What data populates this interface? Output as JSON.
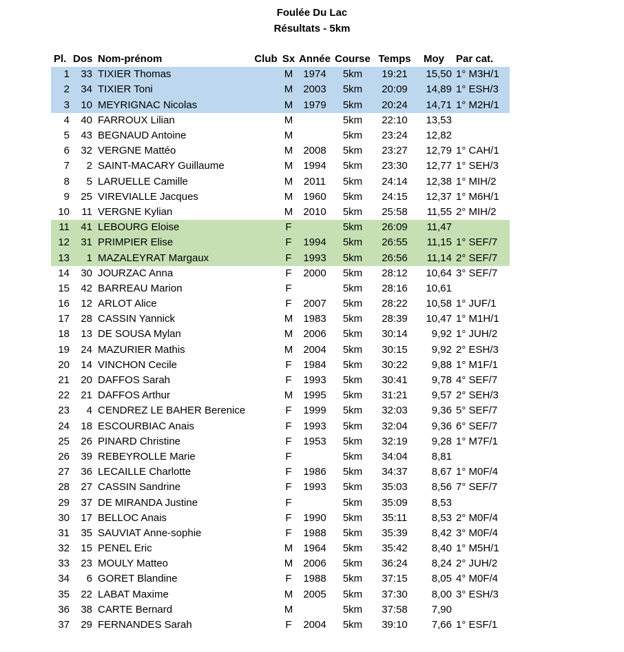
{
  "title": "Foulée Du Lac",
  "subtitle": "Résultats - 5km",
  "colors": {
    "highlight_blue": "#BDD7EE",
    "highlight_green": "#C6E0B4",
    "text": "#000000",
    "background": "#FFFFFF"
  },
  "table": {
    "columns": [
      {
        "key": "pl",
        "label": "Pl."
      },
      {
        "key": "dos",
        "label": "Dos"
      },
      {
        "key": "nom",
        "label": "Nom-prénom"
      },
      {
        "key": "club",
        "label": "Club"
      },
      {
        "key": "sx",
        "label": "Sx"
      },
      {
        "key": "annee",
        "label": "Année"
      },
      {
        "key": "course",
        "label": "Course"
      },
      {
        "key": "temps",
        "label": "Temps"
      },
      {
        "key": "moy",
        "label": "Moy"
      },
      {
        "key": "cat",
        "label": "Par cat."
      }
    ],
    "rows": [
      {
        "pl": "1",
        "dos": "33",
        "nom": "TIXIER Thomas",
        "club": "",
        "sx": "M",
        "annee": "1974",
        "course": "5km",
        "temps": "19:21",
        "moy": "15,50",
        "cat": "1° M3H/1",
        "hl": "blue"
      },
      {
        "pl": "2",
        "dos": "34",
        "nom": "TIXIER Toni",
        "club": "",
        "sx": "M",
        "annee": "2003",
        "course": "5km",
        "temps": "20:09",
        "moy": "14,89",
        "cat": "1° ESH/3",
        "hl": "blue"
      },
      {
        "pl": "3",
        "dos": "10",
        "nom": "MEYRIGNAC Nicolas",
        "club": "",
        "sx": "M",
        "annee": "1979",
        "course": "5km",
        "temps": "20:24",
        "moy": "14,71",
        "cat": "1° M2H/1",
        "hl": "blue"
      },
      {
        "pl": "4",
        "dos": "40",
        "nom": "FARROUX Lilian",
        "club": "",
        "sx": "M",
        "annee": "",
        "course": "5km",
        "temps": "22:10",
        "moy": "13,53",
        "cat": ""
      },
      {
        "pl": "5",
        "dos": "43",
        "nom": "BEGNAUD Antoine",
        "club": "",
        "sx": "M",
        "annee": "",
        "course": "5km",
        "temps": "23:24",
        "moy": "12,82",
        "cat": ""
      },
      {
        "pl": "6",
        "dos": "32",
        "nom": "VERGNE Mattéo",
        "club": "",
        "sx": "M",
        "annee": "2008",
        "course": "5km",
        "temps": "23:27",
        "moy": "12,79",
        "cat": "1° CAH/1"
      },
      {
        "pl": "7",
        "dos": "2",
        "nom": "SAINT-MACARY Guillaume",
        "club": "",
        "sx": "M",
        "annee": "1994",
        "course": "5km",
        "temps": "23:30",
        "moy": "12,77",
        "cat": "1° SEH/3"
      },
      {
        "pl": "8",
        "dos": "5",
        "nom": "LARUELLE Camille",
        "club": "",
        "sx": "M",
        "annee": "2011",
        "course": "5km",
        "temps": "24:14",
        "moy": "12,38",
        "cat": "1° MIH/2"
      },
      {
        "pl": "9",
        "dos": "25",
        "nom": "VIREVIALLE Jacques",
        "club": "",
        "sx": "M",
        "annee": "1960",
        "course": "5km",
        "temps": "24:15",
        "moy": "12,37",
        "cat": "1° M6H/1"
      },
      {
        "pl": "10",
        "dos": "11",
        "nom": "VERGNE Kylian",
        "club": "",
        "sx": "M",
        "annee": "2010",
        "course": "5km",
        "temps": "25:58",
        "moy": "11,55",
        "cat": "2° MIH/2"
      },
      {
        "pl": "11",
        "dos": "41",
        "nom": "LEBOURG Eloise",
        "club": "",
        "sx": "F",
        "annee": "",
        "course": "5km",
        "temps": "26:09",
        "moy": "11,47",
        "cat": "",
        "hl": "green"
      },
      {
        "pl": "12",
        "dos": "31",
        "nom": "PRIMPIER Elise",
        "club": "",
        "sx": "F",
        "annee": "1994",
        "course": "5km",
        "temps": "26:55",
        "moy": "11,15",
        "cat": "1° SEF/7",
        "hl": "green"
      },
      {
        "pl": "13",
        "dos": "1",
        "nom": "MAZALEYRAT Margaux",
        "club": "",
        "sx": "F",
        "annee": "1993",
        "course": "5km",
        "temps": "26:56",
        "moy": "11,14",
        "cat": "2° SEF/7",
        "hl": "green"
      },
      {
        "pl": "14",
        "dos": "30",
        "nom": "JOURZAC Anna",
        "club": "",
        "sx": "F",
        "annee": "2000",
        "course": "5km",
        "temps": "28:12",
        "moy": "10,64",
        "cat": "3° SEF/7"
      },
      {
        "pl": "15",
        "dos": "42",
        "nom": "BARREAU Marion",
        "club": "",
        "sx": "F",
        "annee": "",
        "course": "5km",
        "temps": "28:16",
        "moy": "10,61",
        "cat": ""
      },
      {
        "pl": "16",
        "dos": "12",
        "nom": "ARLOT Alice",
        "club": "",
        "sx": "F",
        "annee": "2007",
        "course": "5km",
        "temps": "28:22",
        "moy": "10,58",
        "cat": "1° JUF/1"
      },
      {
        "pl": "17",
        "dos": "28",
        "nom": "CASSIN Yannick",
        "club": "",
        "sx": "M",
        "annee": "1983",
        "course": "5km",
        "temps": "28:39",
        "moy": "10,47",
        "cat": "1° M1H/1"
      },
      {
        "pl": "18",
        "dos": "13",
        "nom": "DE SOUSA Mylan",
        "club": "",
        "sx": "M",
        "annee": "2006",
        "course": "5km",
        "temps": "30:14",
        "moy": "9,92",
        "cat": "1° JUH/2"
      },
      {
        "pl": "19",
        "dos": "24",
        "nom": "MAZURIER Mathis",
        "club": "",
        "sx": "M",
        "annee": "2004",
        "course": "5km",
        "temps": "30:15",
        "moy": "9,92",
        "cat": "2° ESH/3"
      },
      {
        "pl": "20",
        "dos": "14",
        "nom": "VINCHON Cecile",
        "club": "",
        "sx": "F",
        "annee": "1984",
        "course": "5km",
        "temps": "30:22",
        "moy": "9,88",
        "cat": "1° M1F/1"
      },
      {
        "pl": "21",
        "dos": "20",
        "nom": "DAFFOS Sarah",
        "club": "",
        "sx": "F",
        "annee": "1993",
        "course": "5km",
        "temps": "30:41",
        "moy": "9,78",
        "cat": "4° SEF/7"
      },
      {
        "pl": "22",
        "dos": "21",
        "nom": "DAFFOS Arthur",
        "club": "",
        "sx": "M",
        "annee": "1995",
        "course": "5km",
        "temps": "31:21",
        "moy": "9,57",
        "cat": "2° SEH/3"
      },
      {
        "pl": "23",
        "dos": "4",
        "nom": "CENDREZ LE BAHER Berenice",
        "club": "",
        "sx": "F",
        "annee": "1999",
        "course": "5km",
        "temps": "32:03",
        "moy": "9,36",
        "cat": "5° SEF/7"
      },
      {
        "pl": "24",
        "dos": "18",
        "nom": "ESCOURBIAC Anais",
        "club": "",
        "sx": "F",
        "annee": "1993",
        "course": "5km",
        "temps": "32:04",
        "moy": "9,36",
        "cat": "6° SEF/7"
      },
      {
        "pl": "25",
        "dos": "26",
        "nom": "PINARD Christine",
        "club": "",
        "sx": "F",
        "annee": "1953",
        "course": "5km",
        "temps": "32:19",
        "moy": "9,28",
        "cat": "1° M7F/1"
      },
      {
        "pl": "26",
        "dos": "39",
        "nom": "REBEYROLLE Marie",
        "club": "",
        "sx": "F",
        "annee": "",
        "course": "5km",
        "temps": "34:04",
        "moy": "8,81",
        "cat": ""
      },
      {
        "pl": "27",
        "dos": "36",
        "nom": "LECAILLE Charlotte",
        "club": "",
        "sx": "F",
        "annee": "1986",
        "course": "5km",
        "temps": "34:37",
        "moy": "8,67",
        "cat": "1° M0F/4"
      },
      {
        "pl": "28",
        "dos": "27",
        "nom": "CASSIN Sandrine",
        "club": "",
        "sx": "F",
        "annee": "1993",
        "course": "5km",
        "temps": "35:03",
        "moy": "8,56",
        "cat": "7° SEF/7"
      },
      {
        "pl": "29",
        "dos": "37",
        "nom": "DE MIRANDA Justine",
        "club": "",
        "sx": "F",
        "annee": "",
        "course": "5km",
        "temps": "35:09",
        "moy": "8,53",
        "cat": ""
      },
      {
        "pl": "30",
        "dos": "17",
        "nom": "BELLOC Anais",
        "club": "",
        "sx": "F",
        "annee": "1990",
        "course": "5km",
        "temps": "35:11",
        "moy": "8,53",
        "cat": "2° M0F/4"
      },
      {
        "pl": "31",
        "dos": "35",
        "nom": "SAUVIAT Anne-sophie",
        "club": "",
        "sx": "F",
        "annee": "1988",
        "course": "5km",
        "temps": "35:39",
        "moy": "8,42",
        "cat": "3° M0F/4"
      },
      {
        "pl": "32",
        "dos": "15",
        "nom": "PENEL Eric",
        "club": "",
        "sx": "M",
        "annee": "1964",
        "course": "5km",
        "temps": "35:42",
        "moy": "8,40",
        "cat": "1° M5H/1"
      },
      {
        "pl": "33",
        "dos": "23",
        "nom": "MOULY Matteo",
        "club": "",
        "sx": "M",
        "annee": "2006",
        "course": "5km",
        "temps": "36:24",
        "moy": "8,24",
        "cat": "2° JUH/2"
      },
      {
        "pl": "34",
        "dos": "6",
        "nom": "GORET Blandine",
        "club": "",
        "sx": "F",
        "annee": "1988",
        "course": "5km",
        "temps": "37:15",
        "moy": "8,05",
        "cat": "4° M0F/4"
      },
      {
        "pl": "35",
        "dos": "22",
        "nom": "LABAT Maxime",
        "club": "",
        "sx": "M",
        "annee": "2005",
        "course": "5km",
        "temps": "37:30",
        "moy": "8,00",
        "cat": "3° ESH/3"
      },
      {
        "pl": "36",
        "dos": "38",
        "nom": "CARTE Bernard",
        "club": "",
        "sx": "M",
        "annee": "",
        "course": "5km",
        "temps": "37:58",
        "moy": "7,90",
        "cat": ""
      },
      {
        "pl": "37",
        "dos": "29",
        "nom": "FERNANDES Sarah",
        "club": "",
        "sx": "F",
        "annee": "2004",
        "course": "5km",
        "temps": "39:10",
        "moy": "7,66",
        "cat": "1° ESF/1"
      }
    ]
  }
}
